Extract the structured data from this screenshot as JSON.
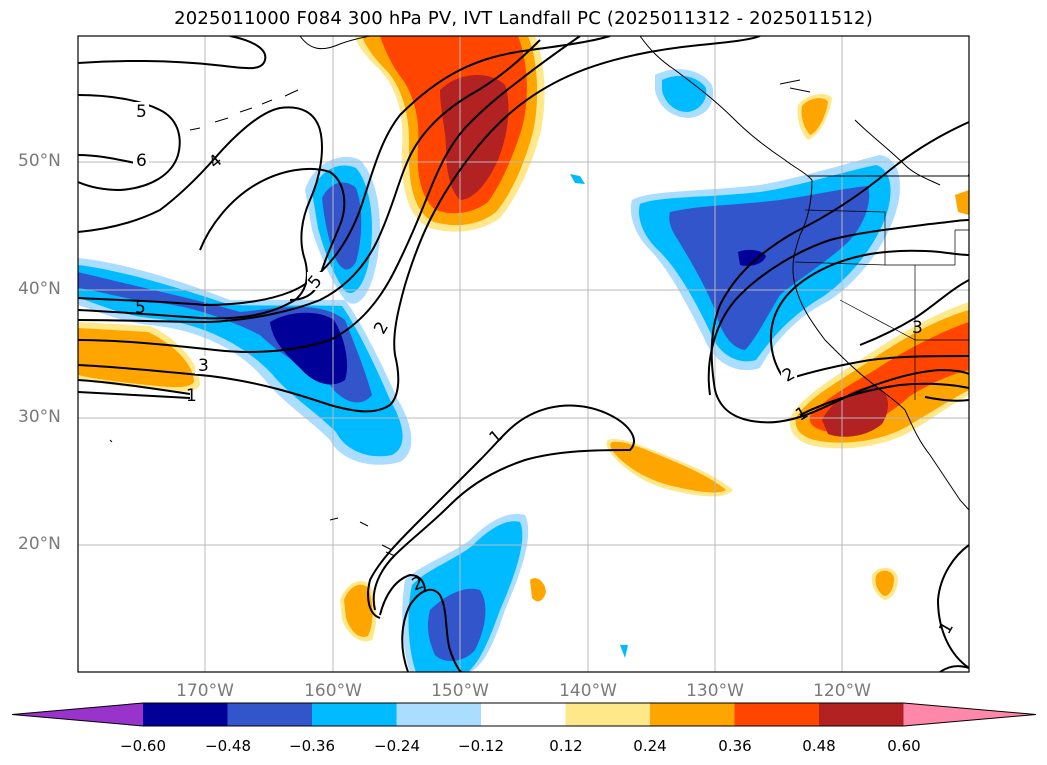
{
  "title": "2025011000 F084 300 hPa PV, IVT Landfall PC (2025011312 - 2025011512)",
  "lat_labels": [
    "50°N",
    "40°N",
    "30°N",
    "20°N"
  ],
  "lon_labels": [
    "170°W",
    "160°W",
    "150°W",
    "140°W",
    "130°W",
    "120°W"
  ],
  "contour_labels": [
    "5",
    "6",
    "4",
    "5",
    "5",
    "2",
    "3",
    "1",
    "1",
    "2",
    "1",
    "2",
    "3",
    "1"
  ],
  "colorbar": {
    "tick_labels": [
      "−0.60",
      "−0.48",
      "−0.36",
      "−0.24",
      "−0.12",
      "0.12",
      "0.24",
      "0.36",
      "0.48",
      "0.60"
    ],
    "colors": [
      "#9933cc",
      "#000099",
      "#3355cc",
      "#00bbff",
      "#aaddff",
      "#ffffff",
      "#ffe88a",
      "#ffa500",
      "#ff4500",
      "#b22222",
      "#ff88aa"
    ]
  },
  "colors": {
    "neg_light": "#aaddff",
    "neg_mid": "#00bbff",
    "neg_strong": "#3355cc",
    "neg_max": "#000099",
    "pos_light": "#ffe88a",
    "pos_mid": "#ffa500",
    "pos_strong": "#ff4500",
    "pos_max": "#b22222"
  }
}
